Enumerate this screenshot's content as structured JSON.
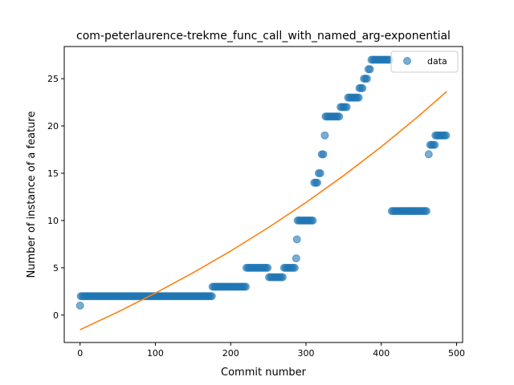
{
  "chart_data": {
    "type": "scatter",
    "title": "com-peterlaurence-trekme_func_call_with_named_arg-exponential",
    "xlabel": "Commit number",
    "ylabel": "Number of instance of a feature",
    "xlim": [
      -21,
      508
    ],
    "ylim": [
      -2.9,
      28.4
    ],
    "xticks": [
      0,
      100,
      200,
      300,
      400,
      500
    ],
    "yticks": [
      0,
      5,
      10,
      15,
      20,
      25
    ],
    "legend_position": "top-right",
    "grid": false,
    "colors": {
      "data": "#1f77b4",
      "fit": "#ff7f0e"
    },
    "series": [
      {
        "name": "data",
        "kind": "points",
        "segments": [
          {
            "from": 0,
            "to": 0,
            "step": 1,
            "y": 1
          },
          {
            "from": 1,
            "to": 175,
            "step": 2,
            "y": 2
          },
          {
            "from": 176,
            "to": 220,
            "step": 2,
            "y": 3
          },
          {
            "from": 221,
            "to": 250,
            "step": 2,
            "y": 5
          },
          {
            "from": 251,
            "to": 270,
            "step": 2,
            "y": 4
          },
          {
            "from": 271,
            "to": 285,
            "step": 2,
            "y": 5
          },
          {
            "from": 287,
            "to": 287,
            "step": 1,
            "y": 6
          },
          {
            "from": 288,
            "to": 288,
            "step": 1,
            "y": 8
          },
          {
            "from": 289,
            "to": 310,
            "step": 2,
            "y": 10
          },
          {
            "from": 311,
            "to": 316,
            "step": 2,
            "y": 14
          },
          {
            "from": 317,
            "to": 320,
            "step": 2,
            "y": 15
          },
          {
            "from": 321,
            "to": 324,
            "step": 2,
            "y": 17
          },
          {
            "from": 325,
            "to": 325,
            "step": 1,
            "y": 19
          },
          {
            "from": 326,
            "to": 345,
            "step": 2,
            "y": 21
          },
          {
            "from": 346,
            "to": 355,
            "step": 2,
            "y": 22
          },
          {
            "from": 356,
            "to": 370,
            "step": 2,
            "y": 23
          },
          {
            "from": 371,
            "to": 376,
            "step": 2,
            "y": 24
          },
          {
            "from": 377,
            "to": 382,
            "step": 2,
            "y": 25
          },
          {
            "from": 383,
            "to": 386,
            "step": 2,
            "y": 26
          },
          {
            "from": 387,
            "to": 412,
            "step": 2,
            "y": 27
          },
          {
            "from": 414,
            "to": 460,
            "step": 2,
            "y": 11
          },
          {
            "from": 463,
            "to": 463,
            "step": 1,
            "y": 17
          },
          {
            "from": 465,
            "to": 471,
            "step": 2,
            "y": 18
          },
          {
            "from": 472,
            "to": 487,
            "step": 2,
            "y": 19
          }
        ]
      },
      {
        "kind": "exponential-fit",
        "x_range": [
          0,
          487
        ],
        "points": [
          [
            0,
            -1.55
          ],
          [
            50,
            0.32
          ],
          [
            100,
            2.32
          ],
          [
            150,
            4.47
          ],
          [
            200,
            6.77
          ],
          [
            250,
            9.25
          ],
          [
            300,
            11.9
          ],
          [
            350,
            14.75
          ],
          [
            400,
            17.8
          ],
          [
            450,
            21.07
          ],
          [
            487,
            23.65
          ]
        ]
      }
    ]
  }
}
